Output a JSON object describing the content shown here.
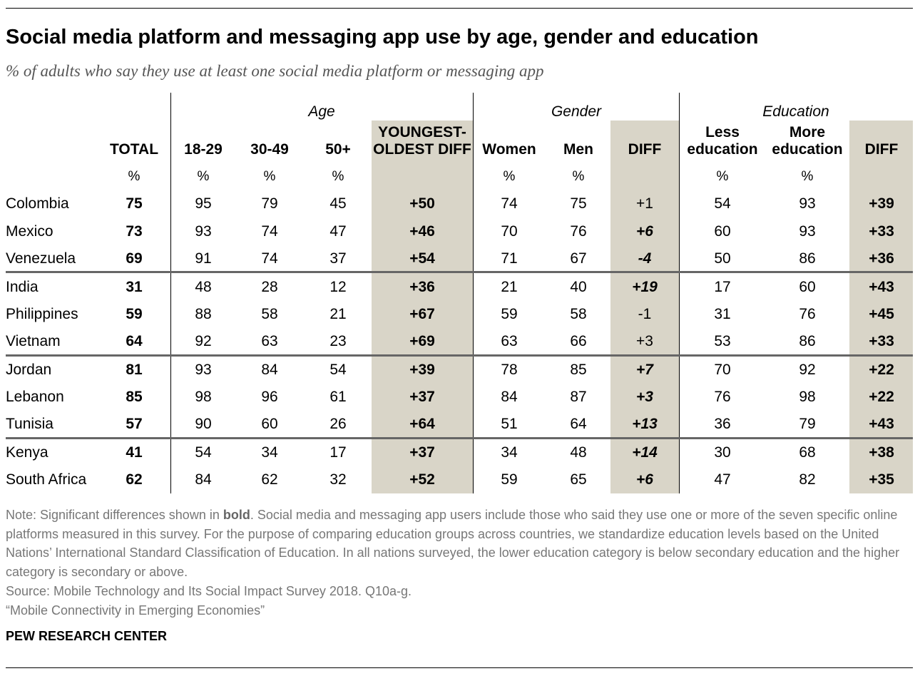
{
  "title": "Social media platform and messaging app use by age, gender and education",
  "subtitle": "% of adults who say they use at least one social media platform or messaging app",
  "chart_data": {
    "type": "table",
    "groups": [
      "Age",
      "Gender",
      "Education"
    ],
    "columns": [
      "TOTAL",
      "18-29",
      "30-49",
      "50+",
      "YOUNGEST-\nOLDEST DIFF",
      "Women",
      "Men",
      "DIFF",
      "Less\neducation",
      "More\neducation",
      "DIFF"
    ],
    "column_headers": {
      "total": "TOTAL",
      "a1829": "18-29",
      "a3049": "30-49",
      "a50": "50+",
      "age_diff_1": "YOUNGEST-",
      "age_diff_2": "OLDEST DIFF",
      "women": "Women",
      "men": "Men",
      "gender_diff": "DIFF",
      "less_1": "Less",
      "less_2": "education",
      "more_1": "More",
      "more_2": "education",
      "edu_diff": "DIFF"
    },
    "percent_sign": "%",
    "rows": [
      {
        "country": "Colombia",
        "total": "75",
        "a1829": "95",
        "a3049": "79",
        "a50": "45",
        "age_diff": "+50",
        "women": "74",
        "men": "75",
        "gender_diff": "+1",
        "gender_sig": false,
        "less": "54",
        "more": "93",
        "edu_diff": "+39"
      },
      {
        "country": "Mexico",
        "total": "73",
        "a1829": "93",
        "a3049": "74",
        "a50": "47",
        "age_diff": "+46",
        "women": "70",
        "men": "76",
        "gender_diff": "+6",
        "gender_sig": true,
        "less": "60",
        "more": "93",
        "edu_diff": "+33"
      },
      {
        "country": "Venezuela",
        "total": "69",
        "a1829": "91",
        "a3049": "74",
        "a50": "37",
        "age_diff": "+54",
        "women": "71",
        "men": "67",
        "gender_diff": "-4",
        "gender_sig": true,
        "less": "50",
        "more": "86",
        "edu_diff": "+36"
      },
      {
        "country": "India",
        "total": "31",
        "a1829": "48",
        "a3049": "28",
        "a50": "12",
        "age_diff": "+36",
        "women": "21",
        "men": "40",
        "gender_diff": "+19",
        "gender_sig": true,
        "less": "17",
        "more": "60",
        "edu_diff": "+43"
      },
      {
        "country": "Philippines",
        "total": "59",
        "a1829": "88",
        "a3049": "58",
        "a50": "21",
        "age_diff": "+67",
        "women": "59",
        "men": "58",
        "gender_diff": "-1",
        "gender_sig": false,
        "less": "31",
        "more": "76",
        "edu_diff": "+45"
      },
      {
        "country": "Vietnam",
        "total": "64",
        "a1829": "92",
        "a3049": "63",
        "a50": "23",
        "age_diff": "+69",
        "women": "63",
        "men": "66",
        "gender_diff": "+3",
        "gender_sig": false,
        "less": "53",
        "more": "86",
        "edu_diff": "+33"
      },
      {
        "country": "Jordan",
        "total": "81",
        "a1829": "93",
        "a3049": "84",
        "a50": "54",
        "age_diff": "+39",
        "women": "78",
        "men": "85",
        "gender_diff": "+7",
        "gender_sig": true,
        "less": "70",
        "more": "92",
        "edu_diff": "+22"
      },
      {
        "country": "Lebanon",
        "total": "85",
        "a1829": "98",
        "a3049": "96",
        "a50": "61",
        "age_diff": "+37",
        "women": "84",
        "men": "87",
        "gender_diff": "+3",
        "gender_sig": true,
        "less": "76",
        "more": "98",
        "edu_diff": "+22"
      },
      {
        "country": "Tunisia",
        "total": "57",
        "a1829": "90",
        "a3049": "60",
        "a50": "26",
        "age_diff": "+64",
        "women": "51",
        "men": "64",
        "gender_diff": "+13",
        "gender_sig": true,
        "less": "36",
        "more": "79",
        "edu_diff": "+43"
      },
      {
        "country": "Kenya",
        "total": "41",
        "a1829": "54",
        "a3049": "34",
        "a50": "17",
        "age_diff": "+37",
        "women": "34",
        "men": "48",
        "gender_diff": "+14",
        "gender_sig": true,
        "less": "30",
        "more": "68",
        "edu_diff": "+38"
      },
      {
        "country": "South Africa",
        "total": "62",
        "a1829": "84",
        "a3049": "62",
        "a50": "32",
        "age_diff": "+52",
        "women": "59",
        "men": "65",
        "gender_diff": "+6",
        "gender_sig": true,
        "less": "47",
        "more": "82",
        "edu_diff": "+35"
      }
    ],
    "region_breaks_after": [
      2,
      5,
      8
    ]
  },
  "notes": {
    "note_prefix": "Note: Significant differences shown in ",
    "note_bold": "bold",
    "note_rest": ". Social media and messaging app users include those who said they use one or more of the seven specific online platforms measured in this survey. For the purpose of comparing education groups across countries, we standardize education levels based on the United Nations’ International Standard Classification of Education. In all nations surveyed, the lower education category is below secondary education and the higher category is secondary or above.",
    "source": "Source: Mobile Technology and Its Social Impact Survey 2018. Q10a-g.",
    "report": "“Mobile Connectivity in Emerging Economies”"
  },
  "org": "PEW RESEARCH CENTER",
  "colors": {
    "shade": "#d9d5c8",
    "divider": "#666666",
    "note": "#777777"
  }
}
